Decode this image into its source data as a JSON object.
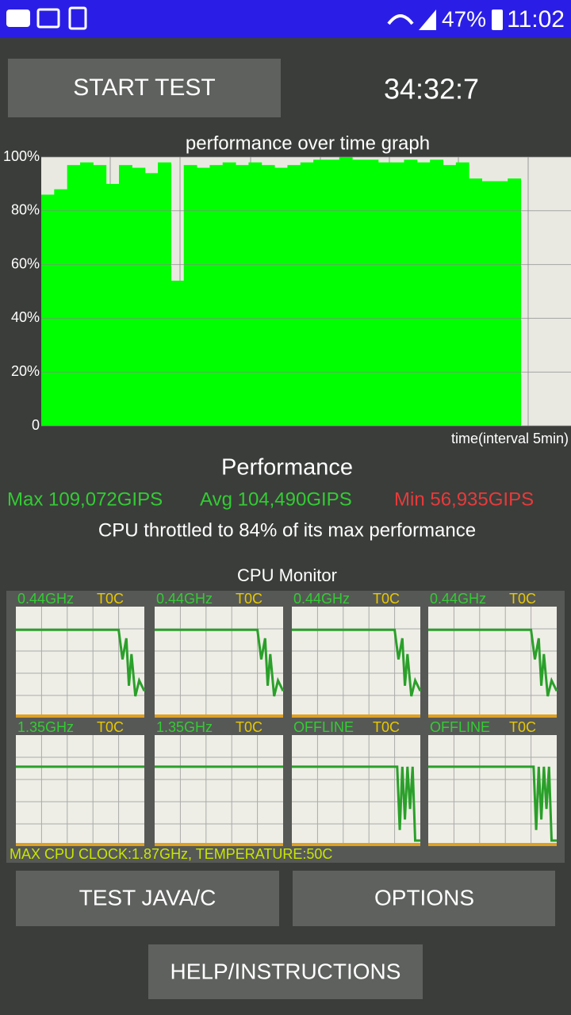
{
  "status_bar": {
    "battery": "47%",
    "time": "11:02"
  },
  "start_button": "START TEST",
  "timer": "34:32:7",
  "performance_graph": {
    "type": "bar",
    "title": "performance over time graph",
    "x_label": "time(interval 5min)",
    "color": "#00ff00",
    "values": [
      86,
      88,
      97,
      98,
      97,
      90,
      97,
      96,
      94,
      98,
      54,
      97,
      96,
      97,
      98,
      97,
      98,
      97,
      96,
      97,
      98,
      99,
      99,
      100,
      99,
      99,
      98,
      98,
      99,
      98,
      99,
      97,
      98,
      92,
      91,
      91,
      92
    ],
    "ylim": [
      0,
      100
    ],
    "yticks": [
      0,
      {
        "value": 20,
        "label": "20%"
      },
      {
        "value": 40,
        "label": "40%"
      },
      {
        "value": 60,
        "label": "60%"
      },
      {
        "value": 80,
        "label": "80%"
      },
      {
        "value": 100,
        "label": "100%"
      }
    ],
    "grid": true
  },
  "performance": {
    "title": "Performance",
    "max": "Max 109,072GIPS",
    "avg": "Avg 104,490GIPS",
    "min": "Min 56,935GIPS",
    "throttle": "CPU throttled to 84% of its max performance"
  },
  "cpu_monitor": {
    "title": "CPU Monitor",
    "cores": [
      {
        "frequency": "0.44GHz",
        "temperature": "T0C"
      },
      {
        "frequency": "0.44GHz",
        "temperature": "T0C"
      },
      {
        "frequency": "0.44GHz",
        "temperature": "T0C"
      },
      {
        "frequency": "0.44GHz",
        "temperature": "T0C"
      },
      {
        "frequency": "1.35GHz",
        "temperature": "T0C"
      },
      {
        "frequency": "1.35GHz",
        "temperature": "T0C"
      },
      {
        "frequency": "OFFLINE",
        "temperature": "T0C"
      },
      {
        "frequency": "OFFLINE",
        "temperature": "T0C"
      }
    ],
    "footer": "MAX CPU CLOCK:1.87GHz, TEMPERATURE:50C"
  },
  "buttons": {
    "test_java": "TEST JAVA/C",
    "options": "OPTIONS",
    "help": "HELP/INSTRUCTIONS"
  }
}
